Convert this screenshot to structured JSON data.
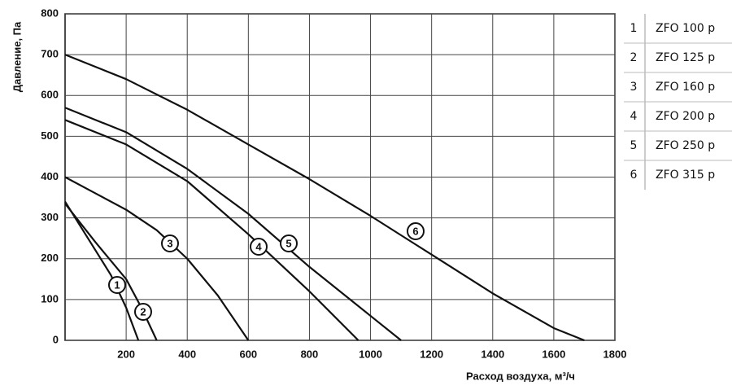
{
  "chart_data": {
    "type": "line",
    "x_label": "Расход воздуха, м³/ч",
    "y_label": "Давление, Па",
    "xlim": [
      0,
      1800
    ],
    "xticks": [
      200,
      400,
      600,
      800,
      1000,
      1200,
      1400,
      1600,
      1800
    ],
    "ylim": [
      0,
      800
    ],
    "yticks": [
      0,
      100,
      200,
      300,
      400,
      500,
      600,
      700,
      800
    ],
    "grid": true,
    "series": [
      {
        "name": "1",
        "model": "ZFO 100 p",
        "color": "#111111",
        "x": [
          0,
          50,
          100,
          150,
          200,
          240
        ],
        "values": [
          340,
          280,
          220,
          160,
          80,
          0
        ]
      },
      {
        "name": "2",
        "model": "ZFO 125 p",
        "color": "#111111",
        "x": [
          0,
          100,
          200,
          250,
          300
        ],
        "values": [
          335,
          240,
          150,
          80,
          0
        ]
      },
      {
        "name": "3",
        "model": "ZFO 160 p",
        "color": "#111111",
        "x": [
          0,
          100,
          200,
          300,
          400,
          500,
          600
        ],
        "values": [
          400,
          360,
          320,
          270,
          200,
          110,
          0
        ]
      },
      {
        "name": "4",
        "model": "ZFO 200 p",
        "color": "#111111",
        "x": [
          0,
          200,
          400,
          600,
          800,
          960
        ],
        "values": [
          540,
          480,
          390,
          260,
          120,
          0
        ]
      },
      {
        "name": "5",
        "model": "ZFO 250 p",
        "color": "#111111",
        "x": [
          0,
          200,
          400,
          600,
          800,
          1000,
          1100
        ],
        "values": [
          570,
          510,
          420,
          310,
          180,
          60,
          0
        ]
      },
      {
        "name": "6",
        "model": "ZFO 315 p",
        "color": "#111111",
        "x": [
          0,
          200,
          400,
          600,
          800,
          1000,
          1200,
          1400,
          1600,
          1700
        ],
        "values": [
          700,
          640,
          565,
          480,
          395,
          305,
          210,
          115,
          30,
          0
        ]
      }
    ]
  }
}
